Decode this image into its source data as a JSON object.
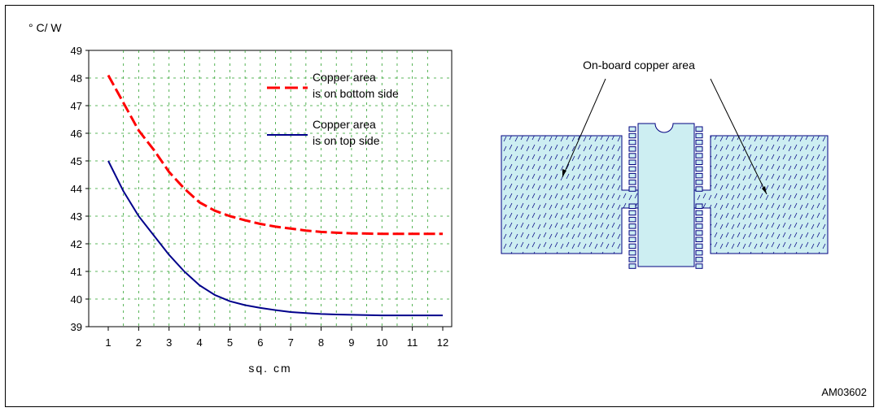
{
  "figure_id": "AM03602",
  "chart_data": {
    "type": "line",
    "ylabel": "° C/ W",
    "xlabel": "sq. cm",
    "xlim": [
      1,
      12
    ],
    "ylim": [
      39,
      49
    ],
    "x_ticks": [
      1,
      2,
      3,
      4,
      5,
      6,
      7,
      8,
      9,
      10,
      11,
      12
    ],
    "y_ticks": [
      39,
      40,
      41,
      42,
      43,
      44,
      45,
      46,
      47,
      48,
      49
    ],
    "grid": true,
    "legend_position": "top-right",
    "series": [
      {
        "name": "Copper area is on bottom side",
        "legend_lines": [
          "Copper area",
          "is on bottom side"
        ],
        "color": "#ff0000",
        "style": "dashed",
        "x": [
          1,
          1.5,
          2,
          2.5,
          3,
          3.5,
          4,
          4.5,
          5,
          5.5,
          6,
          6.5,
          7,
          7.5,
          8,
          8.5,
          9,
          9.5,
          10,
          10.5,
          11,
          11.5,
          12
        ],
        "y": [
          48.1,
          47.1,
          46.1,
          45.4,
          44.6,
          44.0,
          43.5,
          43.2,
          43.0,
          42.85,
          42.72,
          42.62,
          42.55,
          42.48,
          42.43,
          42.4,
          42.38,
          42.37,
          42.36,
          42.36,
          42.36,
          42.36,
          42.36
        ]
      },
      {
        "name": "Copper area is on top side",
        "legend_lines": [
          "Copper area",
          "is on top side"
        ],
        "color": "#00008b",
        "style": "solid",
        "x": [
          1,
          1.5,
          2,
          2.5,
          3,
          3.5,
          4,
          4.5,
          5,
          5.5,
          6,
          6.5,
          7,
          7.5,
          8,
          8.5,
          9,
          9.5,
          10,
          10.5,
          11,
          11.5,
          12
        ],
        "y": [
          45.0,
          43.9,
          43.0,
          42.3,
          41.6,
          41.0,
          40.5,
          40.15,
          39.92,
          39.78,
          39.68,
          39.6,
          39.53,
          39.49,
          39.46,
          39.44,
          39.43,
          39.42,
          39.41,
          39.41,
          39.41,
          39.41,
          39.41
        ]
      }
    ]
  },
  "diagram": {
    "label": "On-board copper area",
    "fill_color": "#cdeef2",
    "stroke_color": "#000080"
  }
}
